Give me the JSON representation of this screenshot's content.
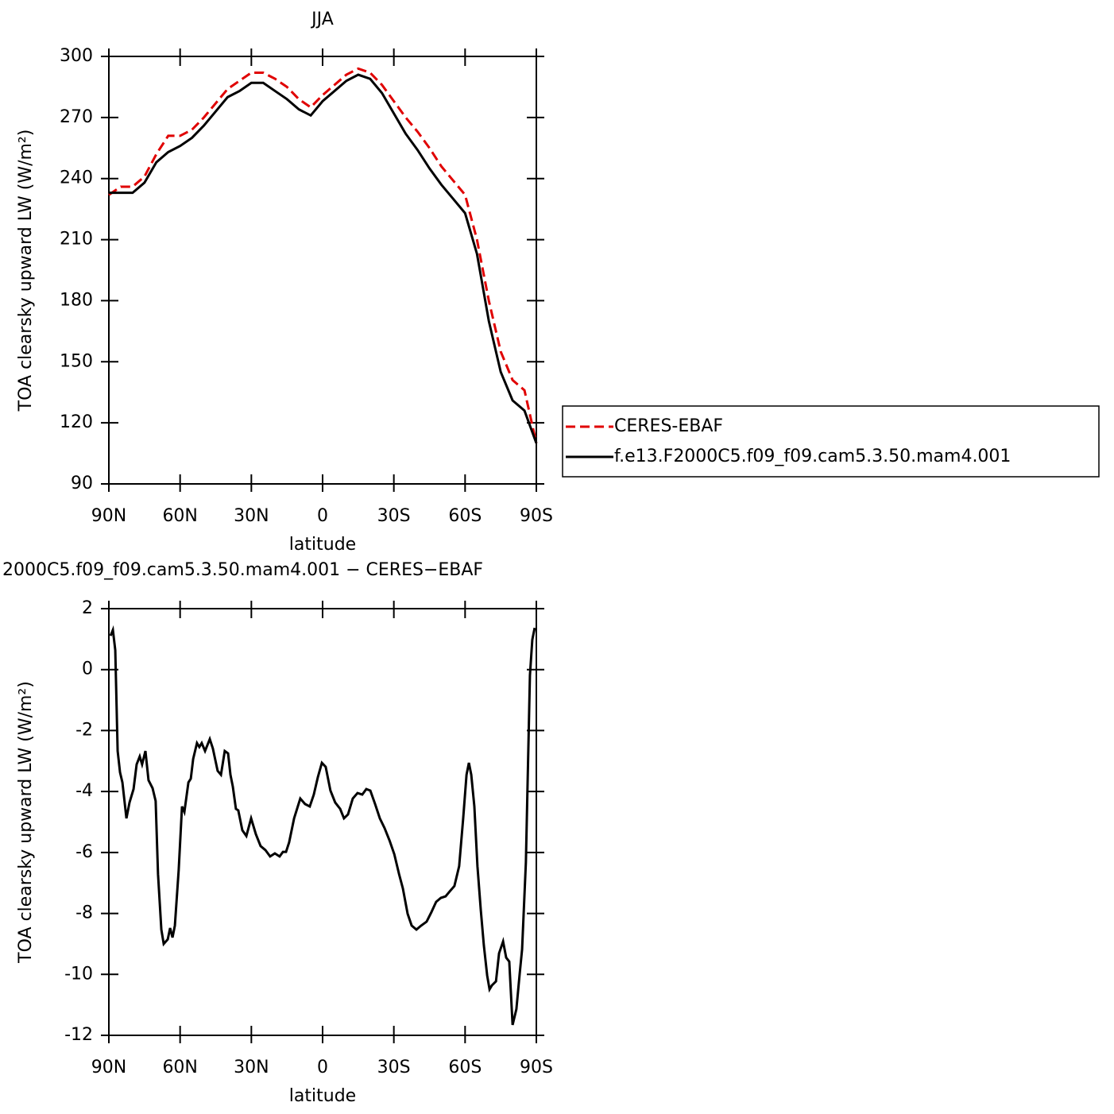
{
  "chart_data": [
    {
      "type": "line",
      "title": "JJA",
      "x_label": "latitude",
      "y_label": "TOA clearsky upward LW (W/m²)",
      "x": [
        90,
        85,
        80,
        75,
        70,
        65,
        60,
        55,
        50,
        45,
        40,
        35,
        30,
        25,
        20,
        15,
        10,
        5,
        0,
        -5,
        -10,
        -15,
        -20,
        -25,
        -30,
        -35,
        -40,
        -45,
        -50,
        -55,
        -60,
        -65,
        -70,
        -75,
        -80,
        -85,
        -90
      ],
      "series": [
        {
          "name": "CERES-EBAF",
          "color": "#e00000",
          "dash": true,
          "values": [
            232,
            236,
            236,
            241,
            252,
            261,
            261,
            264,
            270,
            277,
            284,
            288,
            292,
            292,
            289,
            285,
            279,
            275,
            281,
            286,
            291,
            294,
            292,
            286,
            278,
            270,
            263,
            255,
            246,
            239,
            232,
            210,
            180,
            155,
            141,
            136,
            110
          ]
        },
        {
          "name": "f.e13.F2000C5.f09_f09.cam5.3.50.mam4.001",
          "color": "#000000",
          "dash": false,
          "values": [
            233,
            233,
            233,
            238,
            248,
            253,
            256,
            260,
            266,
            273,
            280,
            283,
            287,
            287,
            283,
            279,
            274,
            271,
            278,
            283,
            288,
            291,
            289,
            282,
            272,
            262,
            254,
            245,
            237,
            230,
            223,
            203,
            170,
            145,
            131,
            126,
            110
          ]
        }
      ],
      "xlim": [
        90,
        -90
      ],
      "ylim": [
        90,
        300
      ],
      "xticks": [
        {
          "value": 90,
          "label": "90N"
        },
        {
          "value": 60,
          "label": "60N"
        },
        {
          "value": 30,
          "label": "30N"
        },
        0,
        {
          "value": -30,
          "label": "30S"
        },
        {
          "value": -60,
          "label": "60S"
        },
        {
          "value": -90,
          "label": "90S"
        }
      ],
      "yticks": [
        90,
        120,
        150,
        180,
        210,
        240,
        270,
        300
      ],
      "legend": "right"
    },
    {
      "type": "line",
      "title": "2000C5.f09_f09.cam5.3.50.mam4.001 − CERES−EBAF",
      "x_label": "latitude",
      "y_label": "TOA clearsky upward LW (W/m²)",
      "x": [
        89.3,
        88.3,
        87.3,
        86.3,
        85.3,
        84.3,
        82.6,
        81.3,
        79.6,
        78.3,
        77.0,
        76.0,
        74.6,
        73.3,
        71.6,
        70.3,
        69.3,
        67.9,
        66.9,
        65.2,
        64.2,
        63.2,
        62.2,
        60.6,
        59.2,
        58.2,
        56.5,
        55.5,
        54.5,
        52.9,
        51.9,
        50.9,
        49.5,
        47.5,
        46.2,
        44.2,
        42.8,
        41.2,
        39.8,
        38.8,
        37.8,
        36.5,
        35.5,
        33.8,
        32.1,
        30.1,
        28.1,
        26.1,
        24.1,
        22.1,
        20.1,
        18.1,
        16.7,
        15.4,
        14.1,
        12.0,
        9.4,
        7.4,
        5.4,
        3.7,
        2.0,
        0.3,
        -1.3,
        -3.3,
        -5.3,
        -7.4,
        -9.0,
        -10.7,
        -12.7,
        -14.7,
        -16.7,
        -18.4,
        -20.1,
        -22.1,
        -24.1,
        -26.1,
        -28.2,
        -30.2,
        -32.2,
        -33.8,
        -35.8,
        -37.5,
        -39.5,
        -41.5,
        -43.8,
        -45.8,
        -47.8,
        -49.8,
        -51.8,
        -53.5,
        -55.5,
        -57.5,
        -59.2,
        -60.6,
        -61.6,
        -62.6,
        -63.9,
        -65.2,
        -66.6,
        -67.9,
        -69.3,
        -70.3,
        -71.3,
        -73.0,
        -74.3,
        -76.0,
        -77.3,
        -78.6,
        -80.0,
        -81.6,
        -83.0,
        -84.0,
        -85.6,
        -87.3,
        -88.3,
        -89.3
      ],
      "values": [
        1.11,
        1.3,
        0.64,
        -2.67,
        -3.37,
        -3.7,
        -4.88,
        -4.36,
        -3.92,
        -3.11,
        -2.85,
        -3.11,
        -2.67,
        -3.63,
        -3.89,
        -4.31,
        -6.71,
        -8.53,
        -9.0,
        -8.85,
        -8.48,
        -8.79,
        -8.4,
        -6.58,
        -4.49,
        -4.67,
        -3.7,
        -3.58,
        -2.93,
        -2.41,
        -2.54,
        -2.41,
        -2.67,
        -2.28,
        -2.59,
        -3.32,
        -3.45,
        -2.67,
        -2.75,
        -3.45,
        -3.84,
        -4.57,
        -4.62,
        -5.27,
        -5.46,
        -4.88,
        -5.4,
        -5.79,
        -5.92,
        -6.13,
        -6.03,
        -6.13,
        -5.98,
        -5.98,
        -5.67,
        -4.88,
        -4.23,
        -4.41,
        -4.49,
        -4.1,
        -3.53,
        -3.06,
        -3.19,
        -3.97,
        -4.36,
        -4.57,
        -4.88,
        -4.75,
        -4.23,
        -4.05,
        -4.1,
        -3.92,
        -3.97,
        -4.41,
        -4.88,
        -5.2,
        -5.61,
        -6.06,
        -6.71,
        -7.18,
        -8.01,
        -8.4,
        -8.53,
        -8.4,
        -8.27,
        -7.96,
        -7.62,
        -7.49,
        -7.44,
        -7.28,
        -7.1,
        -6.45,
        -4.88,
        -3.45,
        -3.06,
        -3.45,
        -4.49,
        -6.45,
        -7.88,
        -9.05,
        -10.04,
        -10.49,
        -10.36,
        -10.23,
        -9.31,
        -8.92,
        -9.45,
        -9.58,
        -11.66,
        -11.14,
        -9.97,
        -9.18,
        -6.32,
        -0.19,
        0.98,
        1.37
      ],
      "color": "#000000",
      "xlim": [
        90,
        -90
      ],
      "ylim": [
        -12,
        2
      ],
      "xticks": [
        {
          "value": 90,
          "label": "90N"
        },
        {
          "value": 60,
          "label": "60N"
        },
        {
          "value": 30,
          "label": "30N"
        },
        0,
        {
          "value": -30,
          "label": "30S"
        },
        {
          "value": -60,
          "label": "60S"
        },
        {
          "value": -90,
          "label": "90S"
        }
      ],
      "yticks": [
        -12,
        -10,
        -8,
        -6,
        -4,
        -2,
        0,
        2
      ]
    }
  ]
}
